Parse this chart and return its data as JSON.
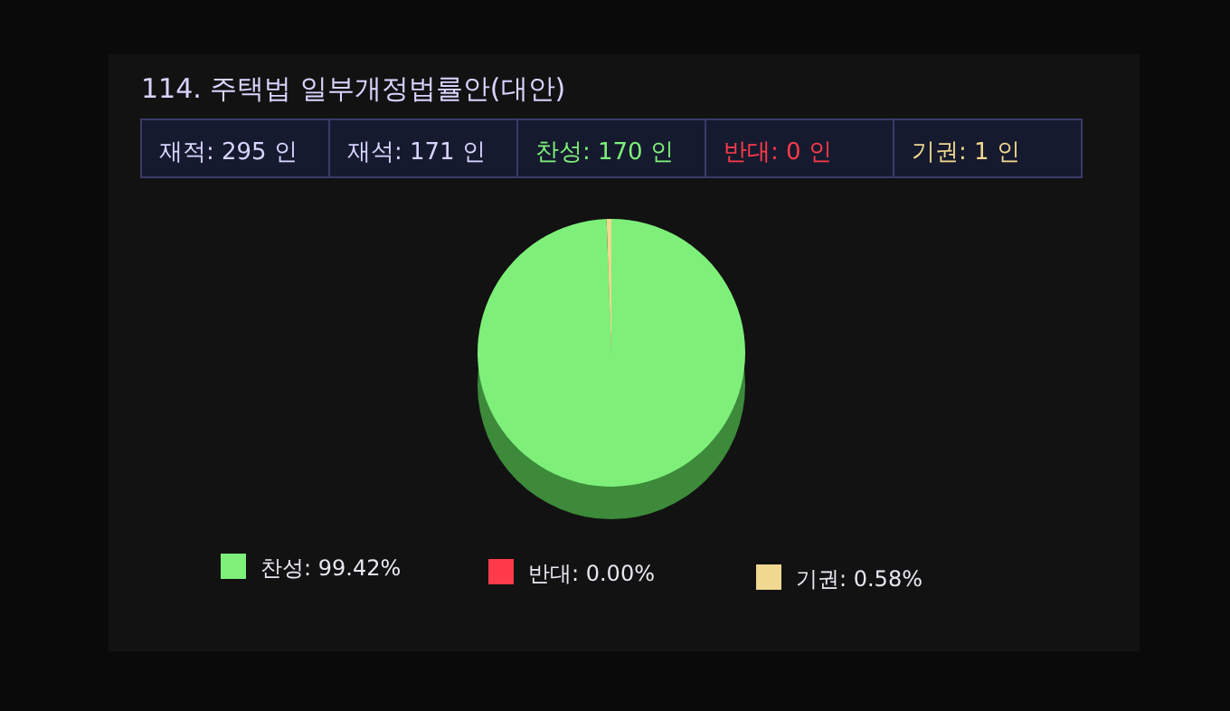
{
  "chart_data": {
    "type": "pie",
    "title": "114. 주택법 일부개정법률안(대안)",
    "annotations": [
      "재적: 295 인",
      "재석: 171 인",
      "찬성: 170 인",
      "반대: 0 인",
      "기권: 1 인"
    ],
    "categories": [
      "찬성: 99.42%",
      "반대: 0.00%",
      "기권: 0.58%"
    ],
    "values": [
      99.42,
      0.0,
      0.58
    ],
    "colors": [
      "#7ef07a",
      "#ff3b4a",
      "#f0d890"
    ],
    "legend": "bottom"
  }
}
